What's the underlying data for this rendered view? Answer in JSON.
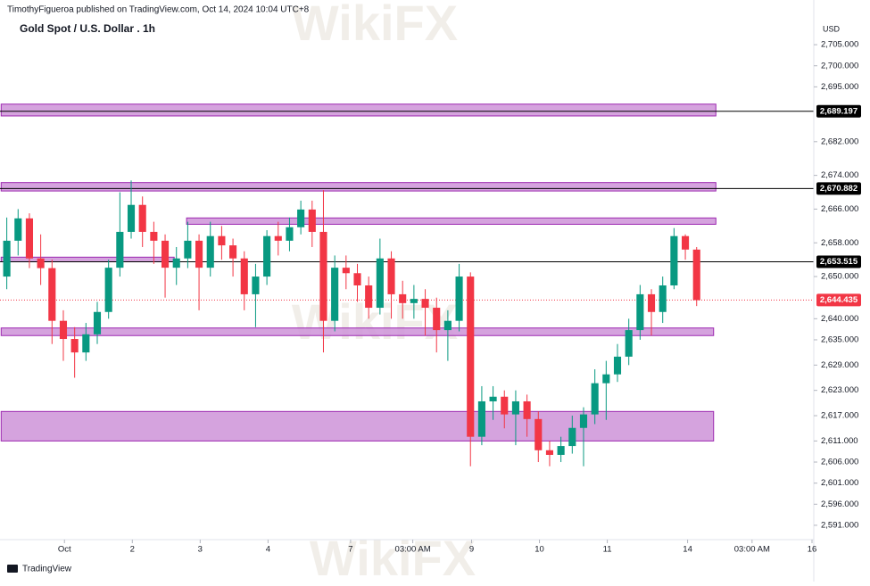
{
  "header": {
    "attribution": "TimothyFigueroa published on TradingView.com, Oct 14, 2024 10:04 UTC+8",
    "footer": "TradingView",
    "watermark": "WikiFX"
  },
  "chart_data": {
    "type": "candlestick",
    "title": "Gold Spot / U.S. Dollar . 1h",
    "y_unit": "USD",
    "up_color": "#089981",
    "down_color": "#f23645",
    "zone_color": "#ce93d8",
    "zone_edge": "#9c27b0",
    "open": [
      2650,
      2658.5,
      2663.8,
      2654.3,
      2652,
      2639.5,
      2635.2,
      2632,
      2636.3,
      2641.6,
      2652.1,
      2660.6,
      2667,
      2660.6,
      2658.5,
      2652.1,
      2654.3,
      2658.5,
      2652.1,
      2659.6,
      2657.4,
      2654.3,
      2645.8,
      2650,
      2659.6,
      2658.5,
      2661.7,
      2665.9,
      2660.6,
      2639.5,
      2652.1,
      2650.8,
      2647.9,
      2642.6,
      2654.3,
      2645.8,
      2643.7,
      2644.7,
      2642.6,
      2637.3,
      2639.5,
      2650,
      2612,
      2620.4,
      2621.5,
      2617.3,
      2620.4,
      2616.2,
      2608.8,
      2607.7,
      2609.8,
      2614.1,
      2617.3,
      2624.7,
      2626.8,
      2631,
      2637.3,
      2645.8,
      2641.6,
      2647.9,
      2659.6,
      2656.4
    ],
    "high": [
      2664,
      2666,
      2665,
      2660,
      2654,
      2642,
      2638,
      2639,
      2644,
      2654,
      2670,
      2672.8,
      2669,
      2663,
      2660,
      2657,
      2663,
      2660,
      2663,
      2662,
      2659,
      2656,
      2653,
      2661,
      2663,
      2664,
      2668,
      2668,
      2670.5,
      2655,
      2655,
      2653,
      2650,
      2659,
      2656,
      2649,
      2648,
      2647,
      2645,
      2642,
      2653,
      2651,
      2624,
      2624,
      2623,
      2623,
      2622,
      2618,
      2611,
      2612,
      2617,
      2619,
      2628,
      2630,
      2634,
      2640,
      2648,
      2647,
      2650,
      2661.5,
      2660,
      2657
    ],
    "low": [
      2647,
      2655,
      2652,
      2648,
      2634,
      2630,
      2626,
      2630,
      2634,
      2640,
      2650,
      2659,
      2657,
      2653,
      2645,
      2648,
      2652,
      2642,
      2650,
      2654,
      2650,
      2642,
      2638,
      2648,
      2655,
      2656,
      2660,
      2657,
      2632,
      2637,
      2647,
      2644,
      2640,
      2641,
      2640,
      2640,
      2640,
      2636,
      2632,
      2630,
      2637,
      2605,
      2610,
      2616,
      2614,
      2610,
      2612,
      2606,
      2605,
      2606,
      2608,
      2605,
      2615,
      2616,
      2625,
      2629,
      2635,
      2636,
      2639,
      2647,
      2654,
      2643
    ],
    "close": [
      2658.5,
      2663.8,
      2654.3,
      2652,
      2639.5,
      2635.2,
      2632,
      2636.3,
      2641.6,
      2652.1,
      2660.6,
      2667,
      2660.6,
      2658.5,
      2652.1,
      2654.3,
      2658.5,
      2652.1,
      2659.6,
      2657.4,
      2654.3,
      2645.8,
      2650,
      2659.6,
      2658.5,
      2661.7,
      2665.9,
      2660.6,
      2639.5,
      2652.1,
      2650.8,
      2647.9,
      2642.6,
      2654.3,
      2645.8,
      2643.7,
      2644.7,
      2642.6,
      2637.3,
      2639.5,
      2650,
      2612,
      2620.4,
      2621.5,
      2617.3,
      2620.4,
      2616.2,
      2608.8,
      2607.7,
      2609.8,
      2614.1,
      2617.3,
      2624.7,
      2626.8,
      2631,
      2637.3,
      2645.8,
      2641.6,
      2647.9,
      2659.6,
      2656.4,
      2644.4
    ],
    "xlim": [
      -0.6,
      71.2
    ],
    "xticks": [
      {
        "value": 5.1,
        "label": "Oct"
      },
      {
        "value": 11.1,
        "label": "2"
      },
      {
        "value": 17.1,
        "label": "3"
      },
      {
        "value": 23.1,
        "label": "4"
      },
      {
        "value": 30.4,
        "label": "7"
      },
      {
        "value": 35.9,
        "label": "03:00 AM"
      },
      {
        "value": 41.1,
        "label": "9"
      },
      {
        "value": 47.1,
        "label": "10"
      },
      {
        "value": 53.1,
        "label": "11"
      },
      {
        "value": 60.2,
        "label": "14"
      },
      {
        "value": 65.9,
        "label": "03:00 AM"
      },
      {
        "value": 71.2,
        "label": "16"
      }
    ],
    "ylim": [
      2587.6,
      2715.6
    ],
    "yticks": [
      {
        "value": 2705,
        "label": "2,705.000"
      },
      {
        "value": 2700,
        "label": "2,700.000"
      },
      {
        "value": 2695,
        "label": "2,695.000"
      },
      {
        "value": 2682,
        "label": "2,682.000"
      },
      {
        "value": 2674,
        "label": "2,674.000"
      },
      {
        "value": 2666,
        "label": "2,666.000"
      },
      {
        "value": 2658,
        "label": "2,658.000"
      },
      {
        "value": 2650,
        "label": "2,650.000"
      },
      {
        "value": 2640,
        "label": "2,640.000"
      },
      {
        "value": 2635,
        "label": "2,635.000"
      },
      {
        "value": 2629,
        "label": "2,629.000"
      },
      {
        "value": 2623,
        "label": "2,623.000"
      },
      {
        "value": 2617,
        "label": "2,617.000"
      },
      {
        "value": 2611,
        "label": "2,611.000"
      },
      {
        "value": 2606,
        "label": "2,606.000"
      },
      {
        "value": 2601,
        "label": "2,601.000"
      },
      {
        "value": 2596,
        "label": "2,596.000"
      },
      {
        "value": 2591,
        "label": "2,591.000"
      }
    ],
    "zones": [
      {
        "low": 2688.1,
        "high": 2690.9,
        "x": [
          -0.5,
          62.7
        ]
      },
      {
        "low": 2670.3,
        "high": 2672.3,
        "x": [
          -0.5,
          62.7
        ]
      },
      {
        "low": 2662.4,
        "high": 2663.9,
        "x": [
          15.9,
          62.7
        ]
      },
      {
        "low": 2653.5,
        "high": 2654.6,
        "x": [
          -0.5,
          14.8
        ]
      },
      {
        "low": 2636,
        "high": 2637.8,
        "x": [
          -0.5,
          62.5
        ]
      },
      {
        "low": 2611,
        "high": 2618,
        "x": [
          -0.5,
          62.5
        ]
      }
    ],
    "levels": [
      {
        "value": 2689.197,
        "label": "2,689.197"
      },
      {
        "value": 2670.882,
        "label": "2,670.882"
      },
      {
        "value": 2653.515,
        "label": "2,653.515"
      }
    ],
    "last_price": {
      "value": 2644.435,
      "label": "2,644.435"
    }
  }
}
